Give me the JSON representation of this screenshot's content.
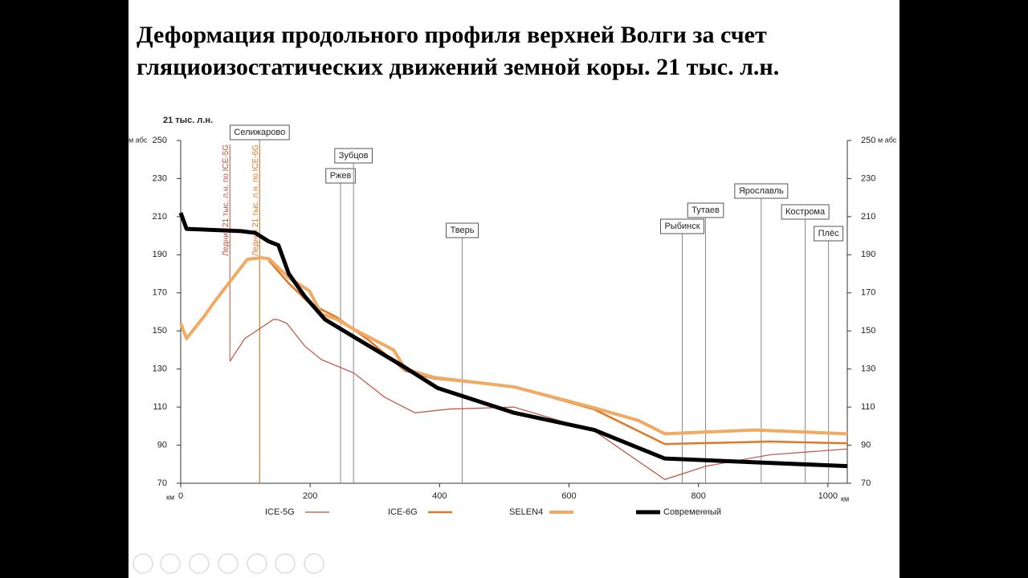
{
  "slide_title": [
    "Деформация продольного профиля верхней Волги за счет",
    "гляциоизостатических движений земной коры. 21 тыс. л.н."
  ],
  "chart_data": {
    "type": "line",
    "title": "21 тыс. л.н.",
    "x_unit": "км",
    "y_unit": "м абс",
    "xlim": [
      0,
      1030
    ],
    "xticks": [
      0,
      200,
      400,
      600,
      800,
      1000
    ],
    "ylim": [
      70,
      250
    ],
    "yticks": [
      70,
      90,
      110,
      130,
      150,
      170,
      190,
      210,
      230,
      250
    ],
    "series": [
      {
        "name": "ICE-5G",
        "color": "#c0503c",
        "x": [
          76,
          99,
          130,
          143,
          149,
          164,
          192,
          217,
          267,
          316,
          362,
          416,
          515,
          639,
          748,
          812,
          911,
          1030
        ],
        "values": [
          134,
          146,
          153,
          156,
          156,
          154,
          142,
          135,
          128,
          115,
          107,
          109,
          110,
          97.5,
          72,
          79,
          85,
          88
        ]
      },
      {
        "name": "ICE-6G",
        "color": "#e07828",
        "x": [
          136,
          167,
          199,
          242,
          291,
          347,
          391,
          515,
          639,
          748,
          911,
          1030
        ],
        "values": [
          187,
          175,
          164.5,
          157,
          145,
          129,
          125,
          120.6,
          108.8,
          90.6,
          91.9,
          91
        ]
      },
      {
        "name": "SELEN4",
        "color": "#f0aa64",
        "x": [
          0,
          9,
          37,
          53,
          81,
          103,
          124,
          136,
          167,
          199,
          217,
          242,
          267,
          329,
          347,
          391,
          515,
          639,
          707,
          748,
          887,
          1030
        ],
        "values": [
          154,
          146,
          158,
          165.7,
          178,
          187.6,
          188.4,
          188,
          178,
          171,
          159,
          156,
          151,
          140,
          130,
          125.6,
          120.6,
          109.6,
          103,
          96,
          98,
          96
        ]
      },
      {
        "name": "Современный",
        "color": "#000000",
        "x": [
          0,
          9,
          93,
          115,
          136,
          151,
          167,
          192,
          223,
          267,
          341,
          397,
          515,
          639,
          748,
          1030
        ],
        "values": [
          212,
          203.6,
          202.4,
          201.5,
          197,
          195,
          180,
          168,
          156,
          147,
          132,
          120,
          107,
          98,
          83,
          79
        ]
      }
    ],
    "towns": [
      {
        "name": "Селижарово",
        "km": 122
      },
      {
        "name": "Ржев",
        "km": 247
      },
      {
        "name": "Зубцов",
        "km": 267
      },
      {
        "name": "Тверь",
        "km": 435
      },
      {
        "name": "Рыбинск",
        "km": 775
      },
      {
        "name": "Тутаев",
        "km": 811
      },
      {
        "name": "Ярославль",
        "km": 897
      },
      {
        "name": "Кострома",
        "km": 965
      },
      {
        "name": "Плёс",
        "km": 1001
      }
    ],
    "glacier_limits": [
      {
        "label": "Ледник 21 тыс. л.н. по ICE-5G",
        "km": 76,
        "color": "#c0503c"
      },
      {
        "label": "Ледник 21 тыс. л.н. по ICE-6G",
        "km": 122,
        "color": "#e07828"
      }
    ]
  }
}
